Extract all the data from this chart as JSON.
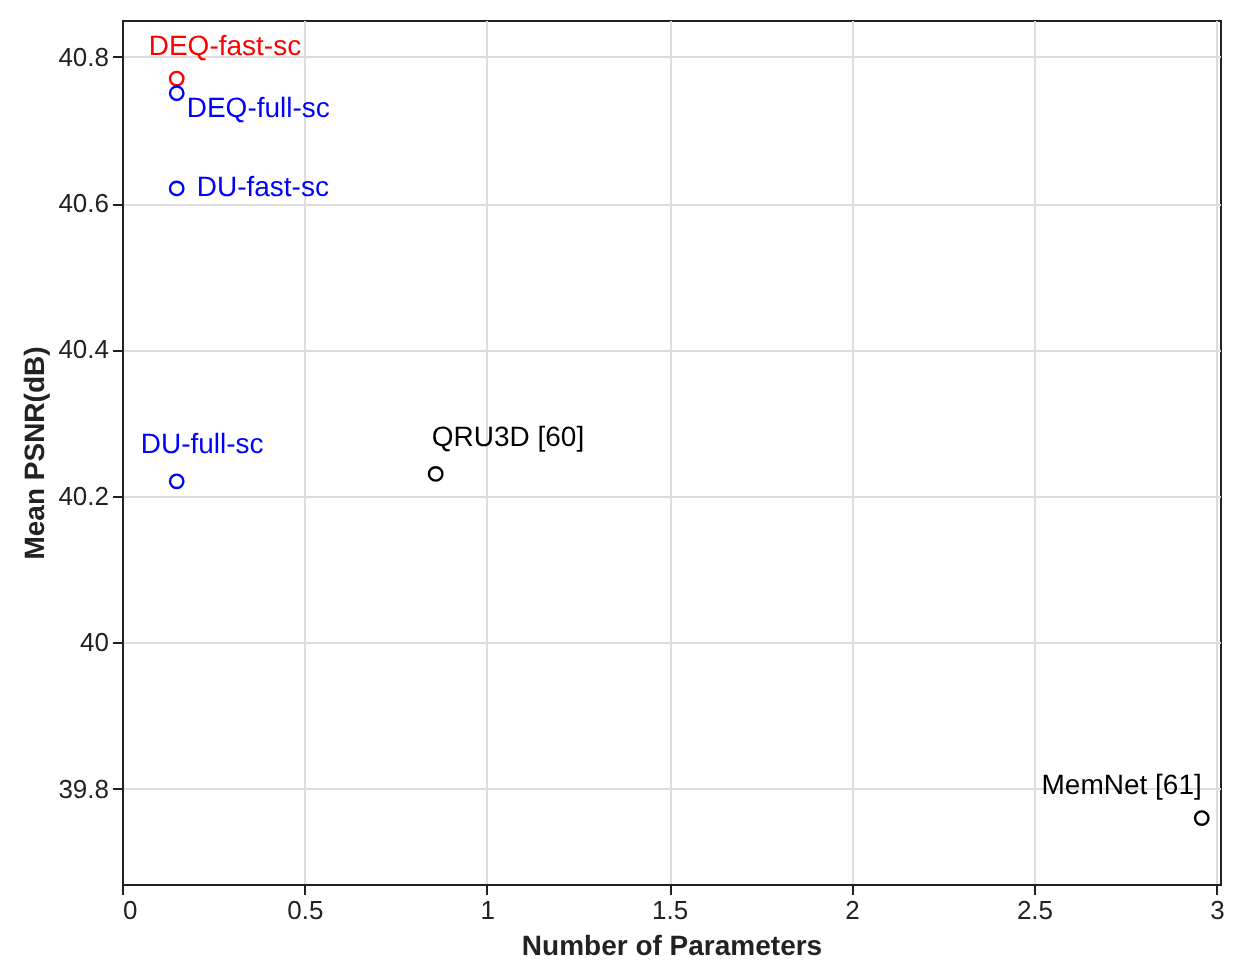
{
  "chart_data": {
    "type": "scatter",
    "xlabel": "Number of Parameters",
    "ylabel": "Mean PSNR(dB)",
    "x": [
      0.15,
      0.15,
      0.15,
      0.15,
      0.86,
      2.96
    ],
    "values": [
      40.77,
      40.75,
      40.62,
      40.22,
      40.23,
      39.76
    ],
    "colors": [
      "#ff0000",
      "#0000ff",
      "#0000ff",
      "#0000ff",
      "#000000",
      "#000000"
    ],
    "xlim": [
      0,
      3.01
    ],
    "xticks": [
      0,
      0.5,
      1,
      1.5,
      2,
      2.5,
      3
    ],
    "ylim": [
      39.67,
      40.85
    ],
    "yticks": [
      39.8,
      40,
      40.2,
      40.4,
      40.6,
      40.8
    ],
    "grid": true,
    "marker": "circle",
    "annotations": [
      {
        "text": "DEQ-fast-sc",
        "x": 0.15,
        "y": 40.77
      },
      {
        "text": "DEQ-full-sc",
        "x": 0.15,
        "y": 40.75
      },
      {
        "text": "DU-fast-sc",
        "x": 0.15,
        "y": 40.62
      },
      {
        "text": "DU-full-sc",
        "x": 0.15,
        "y": 40.22
      },
      {
        "text": "QRU3D [60]",
        "x": 0.86,
        "y": 40.23
      },
      {
        "text": "MemNet [61]",
        "x": 2.96,
        "y": 39.76
      }
    ]
  }
}
